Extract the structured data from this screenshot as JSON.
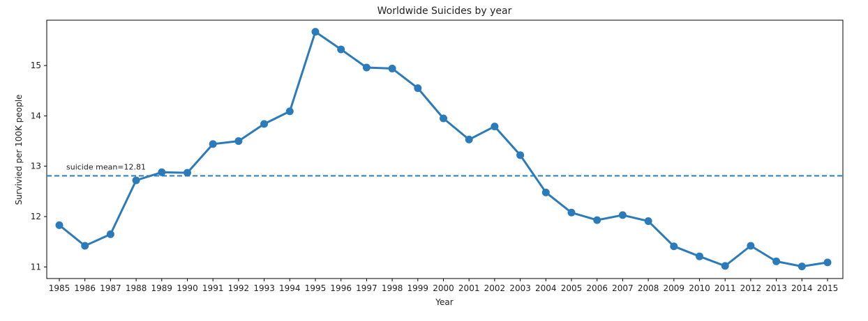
{
  "chart_data": {
    "type": "line",
    "title": "Worldwide Suicides by year",
    "xlabel": "Year",
    "ylabel": "Survivied per 100K people",
    "categories": [
      "1985",
      "1986",
      "1987",
      "1988",
      "1989",
      "1990",
      "1991",
      "1992",
      "1993",
      "1994",
      "1995",
      "1996",
      "1997",
      "1998",
      "1999",
      "2000",
      "2001",
      "2002",
      "2003",
      "2004",
      "2005",
      "2006",
      "2007",
      "2008",
      "2009",
      "2010",
      "2011",
      "2012",
      "2013",
      "2014",
      "2015"
    ],
    "series": [
      {
        "values": [
          11.83,
          11.42,
          11.65,
          12.72,
          12.88,
          12.87,
          13.44,
          13.5,
          13.84,
          14.09,
          15.67,
          15.32,
          14.96,
          14.94,
          14.55,
          13.95,
          13.53,
          13.79,
          13.22,
          12.48,
          12.08,
          11.93,
          12.03,
          11.91,
          11.41,
          11.21,
          11.02,
          11.42,
          11.11,
          11.01,
          11.09
        ],
        "color": "#2b7bba"
      }
    ],
    "y_ticks": [
      11,
      12,
      13,
      14,
      15
    ],
    "ylim": [
      10.77,
      15.9
    ],
    "grid": false,
    "reference_line": {
      "value": 12.81,
      "label": "suicide mean=12.81",
      "style": "dashed",
      "color": "#2b7bba"
    }
  }
}
